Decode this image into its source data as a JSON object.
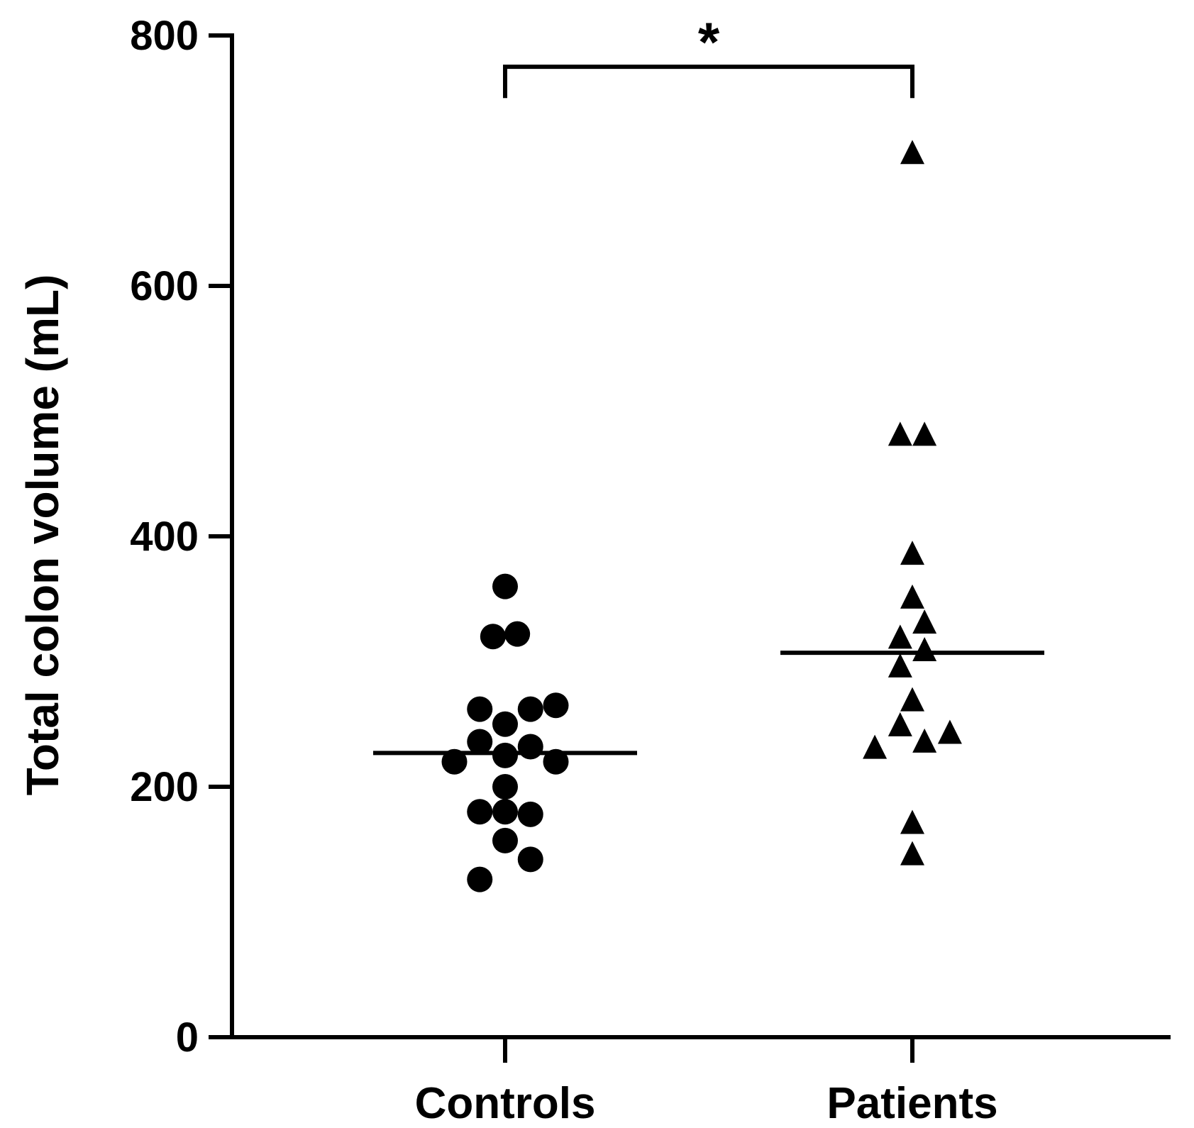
{
  "chart_data": {
    "type": "scatter",
    "title": "",
    "xlabel": "",
    "ylabel": "Total colon volume (mL)",
    "ylim": [
      0,
      800
    ],
    "yticks": [
      0,
      200,
      400,
      600,
      800
    ],
    "ytick_labels": [
      "0",
      "200",
      "400",
      "600",
      "800"
    ],
    "categories": [
      "Controls",
      "Patients"
    ],
    "grid": false,
    "legend": "none",
    "series": [
      {
        "name": "Controls",
        "marker": "circle",
        "color": "#000000",
        "median": 227,
        "points": [
          {
            "offset": 0,
            "y": 360
          },
          {
            "offset": -0.12,
            "y": 320
          },
          {
            "offset": 0.12,
            "y": 322
          },
          {
            "offset": -0.25,
            "y": 262
          },
          {
            "offset": 0.25,
            "y": 262
          },
          {
            "offset": 0.5,
            "y": 265
          },
          {
            "offset": 0,
            "y": 250
          },
          {
            "offset": -0.25,
            "y": 236
          },
          {
            "offset": 0.25,
            "y": 232
          },
          {
            "offset": 0,
            "y": 225
          },
          {
            "offset": -0.5,
            "y": 220
          },
          {
            "offset": 0.5,
            "y": 220
          },
          {
            "offset": 0,
            "y": 200
          },
          {
            "offset": -0.25,
            "y": 180
          },
          {
            "offset": 0,
            "y": 180
          },
          {
            "offset": 0.25,
            "y": 178
          },
          {
            "offset": 0,
            "y": 157
          },
          {
            "offset": 0.25,
            "y": 142
          },
          {
            "offset": -0.25,
            "y": 126
          }
        ]
      },
      {
        "name": "Patients",
        "marker": "triangle",
        "color": "#000000",
        "median": 307,
        "points": [
          {
            "offset": 0,
            "y": 705
          },
          {
            "offset": -0.12,
            "y": 480
          },
          {
            "offset": 0.12,
            "y": 480
          },
          {
            "offset": 0,
            "y": 385
          },
          {
            "offset": 0,
            "y": 350
          },
          {
            "offset": 0.12,
            "y": 330
          },
          {
            "offset": -0.12,
            "y": 318
          },
          {
            "offset": 0.12,
            "y": 308
          },
          {
            "offset": -0.12,
            "y": 295
          },
          {
            "offset": 0,
            "y": 268
          },
          {
            "offset": -0.12,
            "y": 248
          },
          {
            "offset": 0.37,
            "y": 242
          },
          {
            "offset": 0.12,
            "y": 235
          },
          {
            "offset": -0.37,
            "y": 230
          },
          {
            "offset": 0,
            "y": 170
          },
          {
            "offset": 0,
            "y": 145
          }
        ]
      }
    ],
    "annotations": [
      {
        "type": "significance-bracket",
        "between": [
          "Controls",
          "Patients"
        ],
        "label": "*",
        "y_bracket": 775,
        "y_legs": 750
      }
    ]
  }
}
